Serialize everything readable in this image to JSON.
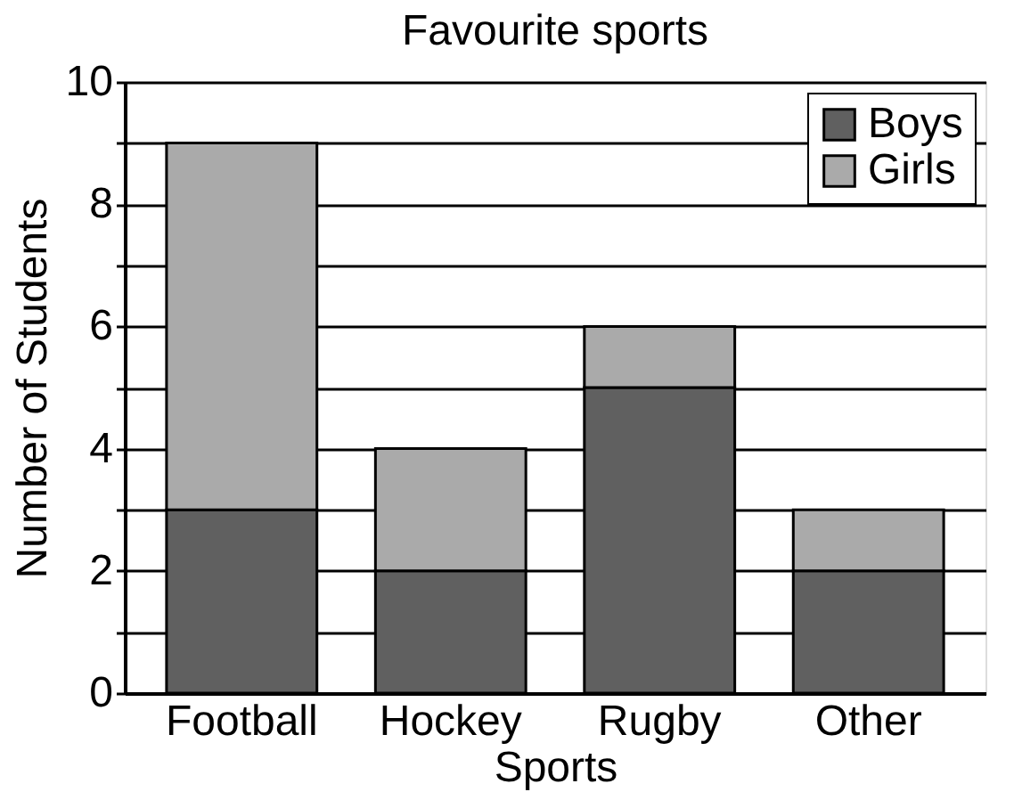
{
  "chart_data": {
    "type": "bar",
    "title": "Favourite sports",
    "xlabel": "Sports",
    "ylabel": "Number of Students",
    "categories": [
      "Football",
      "Hockey",
      "Rugby",
      "Other"
    ],
    "series": [
      {
        "name": "Boys",
        "color": "#606060",
        "values": [
          3,
          2,
          5,
          2
        ]
      },
      {
        "name": "Girls",
        "color": "#aaaaaa",
        "values": [
          6,
          2,
          1,
          1
        ]
      }
    ],
    "stacked": true,
    "ylim": [
      0,
      10
    ],
    "yticks": [
      0,
      {
        "value": 1,
        "label": null
      },
      2,
      {
        "value": 3,
        "label": null
      },
      4,
      {
        "value": 5,
        "label": null
      },
      6,
      {
        "value": 7,
        "label": null
      },
      8,
      {
        "value": 9,
        "label": null
      },
      10
    ],
    "grid": "y",
    "legend": "top right"
  }
}
